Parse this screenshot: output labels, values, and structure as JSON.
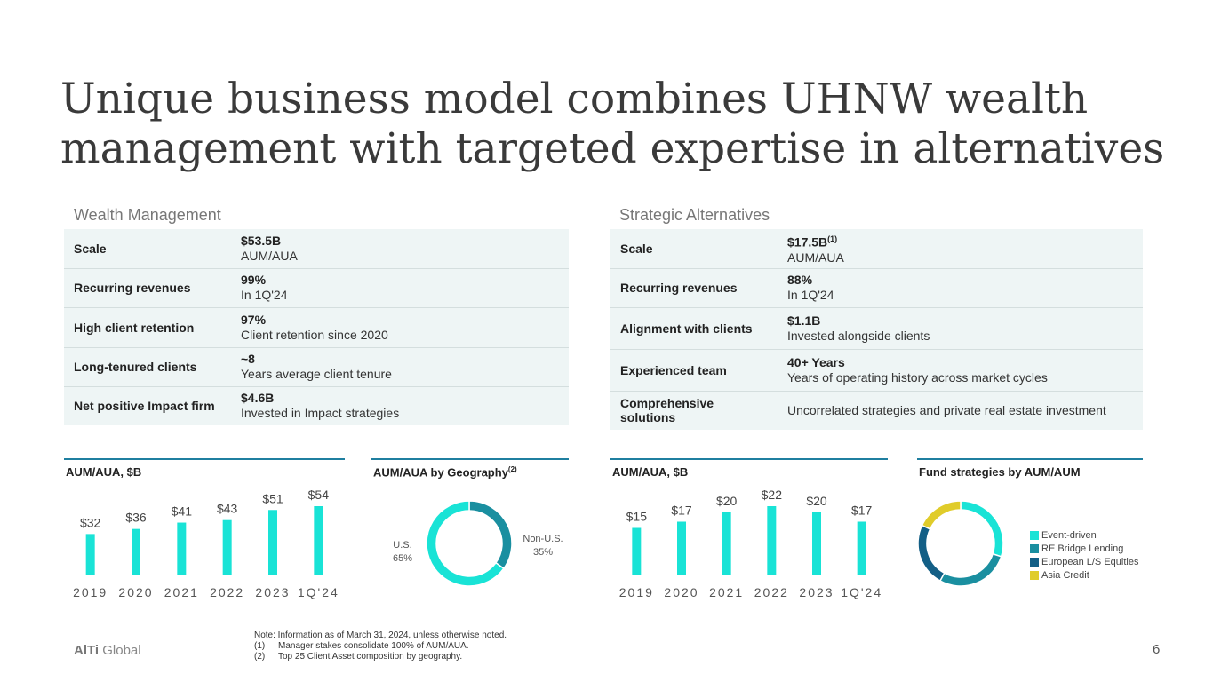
{
  "title": "Unique business model combines UHNW wealth management with targeted expertise in alternatives",
  "wealth": {
    "heading": "Wealth Management",
    "rows": [
      {
        "label": "Scale",
        "value": "$53.5B",
        "sup": "",
        "sub": "AUM/AUA"
      },
      {
        "label": "Recurring revenues",
        "value": "99%",
        "sup": "",
        "sub": "In 1Q'24"
      },
      {
        "label": "High client retention",
        "value": "97%",
        "sup": "",
        "sub": "Client retention since 2020"
      },
      {
        "label": "Long-tenured clients",
        "value": "~8",
        "sup": "",
        "sub": "Years average client tenure"
      },
      {
        "label": "Net positive Impact firm",
        "value": "$4.6B",
        "sup": "",
        "sub": "Invested in Impact strategies"
      }
    ]
  },
  "alternatives": {
    "heading": "Strategic Alternatives",
    "rows": [
      {
        "label": "Scale",
        "value": "$17.5B",
        "sup": "(1)",
        "sub": "AUM/AUA"
      },
      {
        "label": "Recurring revenues",
        "value": "88%",
        "sup": "",
        "sub": "In 1Q'24"
      },
      {
        "label": "Alignment with clients",
        "value": "$1.1B",
        "sup": "",
        "sub": "Invested alongside clients"
      },
      {
        "label": "Experienced team",
        "value": "40+ Years",
        "sup": "",
        "sub": "Years of operating history across market cycles"
      },
      {
        "label": "Comprehensive solutions",
        "value": "",
        "sup": "",
        "sub": "Uncorrelated strategies and private real estate investment"
      }
    ]
  },
  "chart_data": [
    {
      "type": "bar",
      "title": "AUM/AUA, $B",
      "categories": [
        "2019",
        "2020",
        "2021",
        "2022",
        "2023",
        "1Q'24"
      ],
      "values": [
        32,
        36,
        41,
        43,
        51,
        54
      ],
      "labels": [
        "$32",
        "$36",
        "$41",
        "$43",
        "$51",
        "$54"
      ],
      "ylim": [
        0,
        54
      ],
      "color": "#19e3d6"
    },
    {
      "type": "pie",
      "title": "AUM/AUA by Geography",
      "title_sup": "(2)",
      "slices": [
        {
          "label": "Non-U.S.",
          "pct_label": "35%",
          "value": 35,
          "color": "#1a8fa0"
        },
        {
          "label": "U.S.",
          "pct_label": "65%",
          "value": 65,
          "color": "#19e3d6"
        }
      ]
    },
    {
      "type": "bar",
      "title": "AUM/AUA, $B",
      "categories": [
        "2019",
        "2020",
        "2021",
        "2022",
        "2023",
        "1Q'24"
      ],
      "values": [
        15,
        17,
        20,
        22,
        20,
        17
      ],
      "labels": [
        "$15",
        "$17",
        "$20",
        "$22",
        "$20",
        "$17"
      ],
      "ylim": [
        0,
        22
      ],
      "color": "#19e3d6"
    },
    {
      "type": "pie",
      "title": "Fund strategies by AUM/AUM",
      "slices": [
        {
          "label": "Event-driven",
          "value": 30,
          "color": "#19e3d6"
        },
        {
          "label": "RE Bridge Lending",
          "value": 28,
          "color": "#1a8fa0"
        },
        {
          "label": "European L/S Equities",
          "value": 24,
          "color": "#135f86"
        },
        {
          "label": "Asia Credit",
          "value": 18,
          "color": "#e0cc2a"
        }
      ]
    }
  ],
  "footer": {
    "logo_bold": "AlTi",
    "logo_rest": " Global",
    "note_line1": "Note: Information as of March 31, 2024, unless otherwise noted.",
    "notes": [
      {
        "n": "(1)",
        "text": "Manager stakes consolidate 100% of AUM/AUA."
      },
      {
        "n": "(2)",
        "text": "Top 25 Client Asset composition by geography."
      }
    ],
    "page_number": "6"
  }
}
